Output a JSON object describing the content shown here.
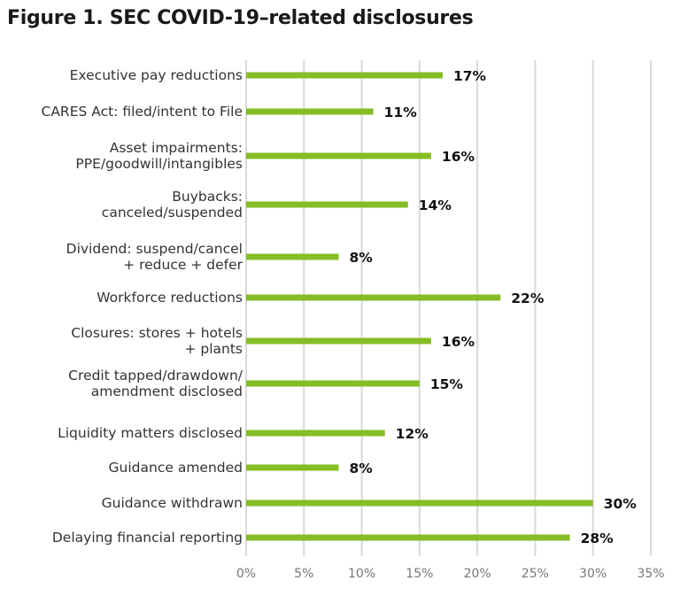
{
  "chart_data": {
    "type": "bar",
    "orientation": "horizontal",
    "title": "Figure 1. SEC COVID-19–related disclosures",
    "categories": [
      [
        "Executive pay reductions"
      ],
      [
        "CARES Act: filed/intent to File"
      ],
      [
        "Asset impairments:",
        "PPE/goodwill/intangibles"
      ],
      [
        "Buybacks:",
        "canceled/suspended"
      ],
      [
        "Dividend: suspend/cancel",
        "+ reduce + defer"
      ],
      [
        "Workforce reductions"
      ],
      [
        "Closures: stores + hotels",
        "+ plants"
      ],
      [
        "Credit tapped/drawdown/",
        "amendment disclosed"
      ],
      [
        "Liquidity matters disclosed"
      ],
      [
        "Guidance amended"
      ],
      [
        "Guidance withdrawn"
      ],
      [
        "Delaying financial reporting"
      ]
    ],
    "values": [
      17,
      11,
      16,
      14,
      8,
      22,
      16,
      15,
      12,
      8,
      30,
      28
    ],
    "value_labels": [
      "17%",
      "11%",
      "16%",
      "14%",
      "8%",
      "22%",
      "16%",
      "15%",
      "12%",
      "8%",
      "30%",
      "28%"
    ],
    "xlim": [
      0,
      35
    ],
    "xticks": [
      "0%",
      "5%",
      "10%",
      "15%",
      "20%",
      "25%",
      "30%",
      "35%"
    ],
    "grid": true,
    "bar_color": "#86bc25",
    "grid_color": "#d9d9d9"
  }
}
